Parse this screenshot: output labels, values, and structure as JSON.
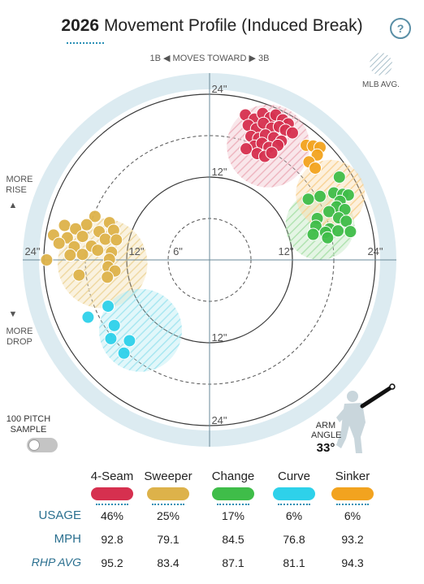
{
  "header": {
    "year": "2026",
    "title_rest": " Movement Profile (Induced Break)",
    "help_label": "?"
  },
  "chart_data": {
    "type": "scatter",
    "title": "2026 Movement Profile (Induced Break)",
    "x_axis": {
      "unit": "inches",
      "range": [
        -28,
        28
      ],
      "tick_labels": [
        "24\"",
        "12\"",
        "6\"",
        "12\"",
        "24\""
      ],
      "direction_label": "1B ◀  MOVES TOWARD  ▶ 3B"
    },
    "y_axis": {
      "unit": "inches",
      "range": [
        -28,
        28
      ],
      "tick_labels": [
        "24\"",
        "12\"",
        "12\"",
        "24\""
      ],
      "top_label": [
        "MORE",
        "RISE",
        "▲"
      ],
      "bottom_label": [
        "▼",
        "MORE",
        "DROP"
      ]
    },
    "mlb_avg_label": "MLB AVG.",
    "series": [
      {
        "name": "4-Seam",
        "color": "#d6304f",
        "light": "#eeb7c1",
        "avg": {
          "x": 8.5,
          "y": 16.5,
          "r": 6.0
        },
        "points": [
          [
            5.2,
            21.0
          ],
          [
            6.5,
            20.4
          ],
          [
            7.7,
            21.2
          ],
          [
            8.8,
            20.6
          ],
          [
            9.6,
            21.0
          ],
          [
            10.6,
            20.3
          ],
          [
            11.4,
            19.7
          ],
          [
            5.6,
            19.5
          ],
          [
            6.8,
            19.0
          ],
          [
            7.8,
            19.8
          ],
          [
            9.0,
            19.1
          ],
          [
            10.1,
            19.3
          ],
          [
            11.0,
            18.8
          ],
          [
            12.0,
            18.4
          ],
          [
            6.0,
            17.9
          ],
          [
            7.1,
            17.6
          ],
          [
            8.1,
            18.1
          ],
          [
            9.3,
            17.7
          ],
          [
            10.4,
            17.2
          ],
          [
            6.5,
            16.5
          ],
          [
            7.6,
            16.9
          ],
          [
            8.6,
            16.3
          ],
          [
            9.9,
            16.6
          ],
          [
            5.3,
            16.1
          ],
          [
            6.9,
            15.4
          ],
          [
            8.0,
            15.0
          ],
          [
            9.0,
            15.5
          ]
        ]
      },
      {
        "name": "Sweeper",
        "color": "#ddb24a",
        "light": "#efd9a3",
        "avg": {
          "x": -15.5,
          "y": -0.5,
          "r": 6.5
        },
        "points": [
          [
            -16.6,
            6.3
          ],
          [
            -17.8,
            5.1
          ],
          [
            -14.5,
            5.4
          ],
          [
            -13.9,
            4.3
          ],
          [
            -21.0,
            5.0
          ],
          [
            -19.4,
            4.5
          ],
          [
            -16.0,
            4.1
          ],
          [
            -22.6,
            3.6
          ],
          [
            -20.6,
            3.2
          ],
          [
            -18.4,
            3.4
          ],
          [
            -15.1,
            3.0
          ],
          [
            -13.5,
            2.9
          ],
          [
            -21.8,
            2.4
          ],
          [
            -19.6,
            1.9
          ],
          [
            -17.1,
            2.0
          ],
          [
            -16.2,
            1.4
          ],
          [
            -14.2,
            1.1
          ],
          [
            -20.2,
            0.7
          ],
          [
            -18.4,
            0.8
          ],
          [
            -23.6,
            0.0
          ],
          [
            -14.5,
            0.1
          ],
          [
            -14.7,
            -1.0
          ],
          [
            -18.9,
            -2.2
          ],
          [
            -13.7,
            -1.6
          ],
          [
            -14.8,
            -2.5
          ]
        ]
      },
      {
        "name": "Change",
        "color": "#3fbd49",
        "light": "#b2e3b2",
        "avg": {
          "x": 16.0,
          "y": 5.0,
          "r": 5.0
        },
        "points": [
          [
            18.8,
            12.0
          ],
          [
            16.0,
            9.2
          ],
          [
            18.0,
            9.7
          ],
          [
            19.3,
            9.5
          ],
          [
            20.1,
            9.4
          ],
          [
            18.9,
            8.5
          ],
          [
            14.3,
            8.8
          ],
          [
            18.4,
            7.7
          ],
          [
            19.6,
            7.3
          ],
          [
            17.3,
            7.0
          ],
          [
            15.6,
            6.0
          ],
          [
            18.7,
            6.1
          ],
          [
            19.8,
            5.6
          ],
          [
            15.4,
            4.9
          ],
          [
            17.4,
            4.5
          ],
          [
            18.6,
            4.2
          ],
          [
            20.4,
            4.1
          ],
          [
            16.8,
            4.0
          ],
          [
            17.1,
            3.2
          ],
          [
            15.0,
            3.7
          ]
        ]
      },
      {
        "name": "Curve",
        "color": "#2ed1ea",
        "light": "#a9e7f1",
        "avg": {
          "x": -10.0,
          "y": -10.2,
          "r": 6.0
        },
        "points": [
          [
            -14.7,
            -6.7
          ],
          [
            -17.6,
            -8.3
          ],
          [
            -13.8,
            -9.5
          ],
          [
            -14.3,
            -11.4
          ],
          [
            -11.6,
            -11.7
          ],
          [
            -12.4,
            -13.5
          ]
        ]
      },
      {
        "name": "Sinker",
        "color": "#f2a31f",
        "light": "#f8d49a",
        "avg": {
          "x": 17.5,
          "y": 9.5,
          "r": 5.0
        },
        "points": [
          [
            14.0,
            16.6
          ],
          [
            15.0,
            16.5
          ],
          [
            16.0,
            16.3
          ],
          [
            15.6,
            15.2
          ],
          [
            14.4,
            14.2
          ],
          [
            15.3,
            13.3
          ]
        ]
      }
    ]
  },
  "toggle": {
    "label_line1": "100 PITCH",
    "label_line2": "SAMPLE",
    "on": false
  },
  "arm": {
    "label_line1": "ARM",
    "label_line2": "ANGLE",
    "value": "33°",
    "angle_deg": 33
  },
  "legend": [
    "4-Seam",
    "Sweeper",
    "Change",
    "Curve",
    "Sinker"
  ],
  "table": {
    "row_labels": {
      "usage": "USAGE",
      "mph": "MPH",
      "rhp": "RHP AVG"
    },
    "usage": [
      "46%",
      "25%",
      "17%",
      "6%",
      "6%"
    ],
    "mph": [
      "92.8",
      "79.1",
      "84.5",
      "76.8",
      "93.2"
    ],
    "rhp_avg": [
      "95.2",
      "83.4",
      "87.1",
      "81.1",
      "94.3"
    ]
  }
}
